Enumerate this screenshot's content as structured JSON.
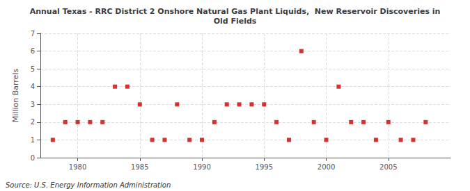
{
  "chart_data": {
    "type": "scatter",
    "title": "Annual Texas - RRC District 2 Onshore Natural Gas Plant Liquids,  New Reservoir Discoveries in\nOld Fields",
    "ylabel": "Million Barrels",
    "annotation": "Source: U.S. Energy Information Administration",
    "x": [
      1978,
      1979,
      1980,
      1981,
      1982,
      1983,
      1984,
      1985,
      1986,
      1987,
      1988,
      1989,
      1990,
      1991,
      1992,
      1993,
      1994,
      1995,
      1996,
      1997,
      1998,
      1999,
      2000,
      2001,
      2002,
      2003,
      2004,
      2005,
      2006,
      2007,
      2008
    ],
    "values": [
      1,
      2,
      2,
      2,
      2,
      4,
      4,
      3,
      1,
      1,
      3,
      1,
      1,
      2,
      3,
      3,
      3,
      3,
      2,
      1,
      6,
      2,
      1,
      4,
      2,
      2,
      1,
      2,
      1,
      1,
      2
    ],
    "color": "#cc0000",
    "marker": "square",
    "xlim": [
      1977,
      2010
    ],
    "ylim": [
      0,
      7
    ],
    "xticks": [
      1980,
      1985,
      1990,
      1995,
      2000,
      2005
    ],
    "yticks": [
      0,
      1,
      2,
      3,
      4,
      5,
      6,
      7
    ],
    "grid": true
  }
}
